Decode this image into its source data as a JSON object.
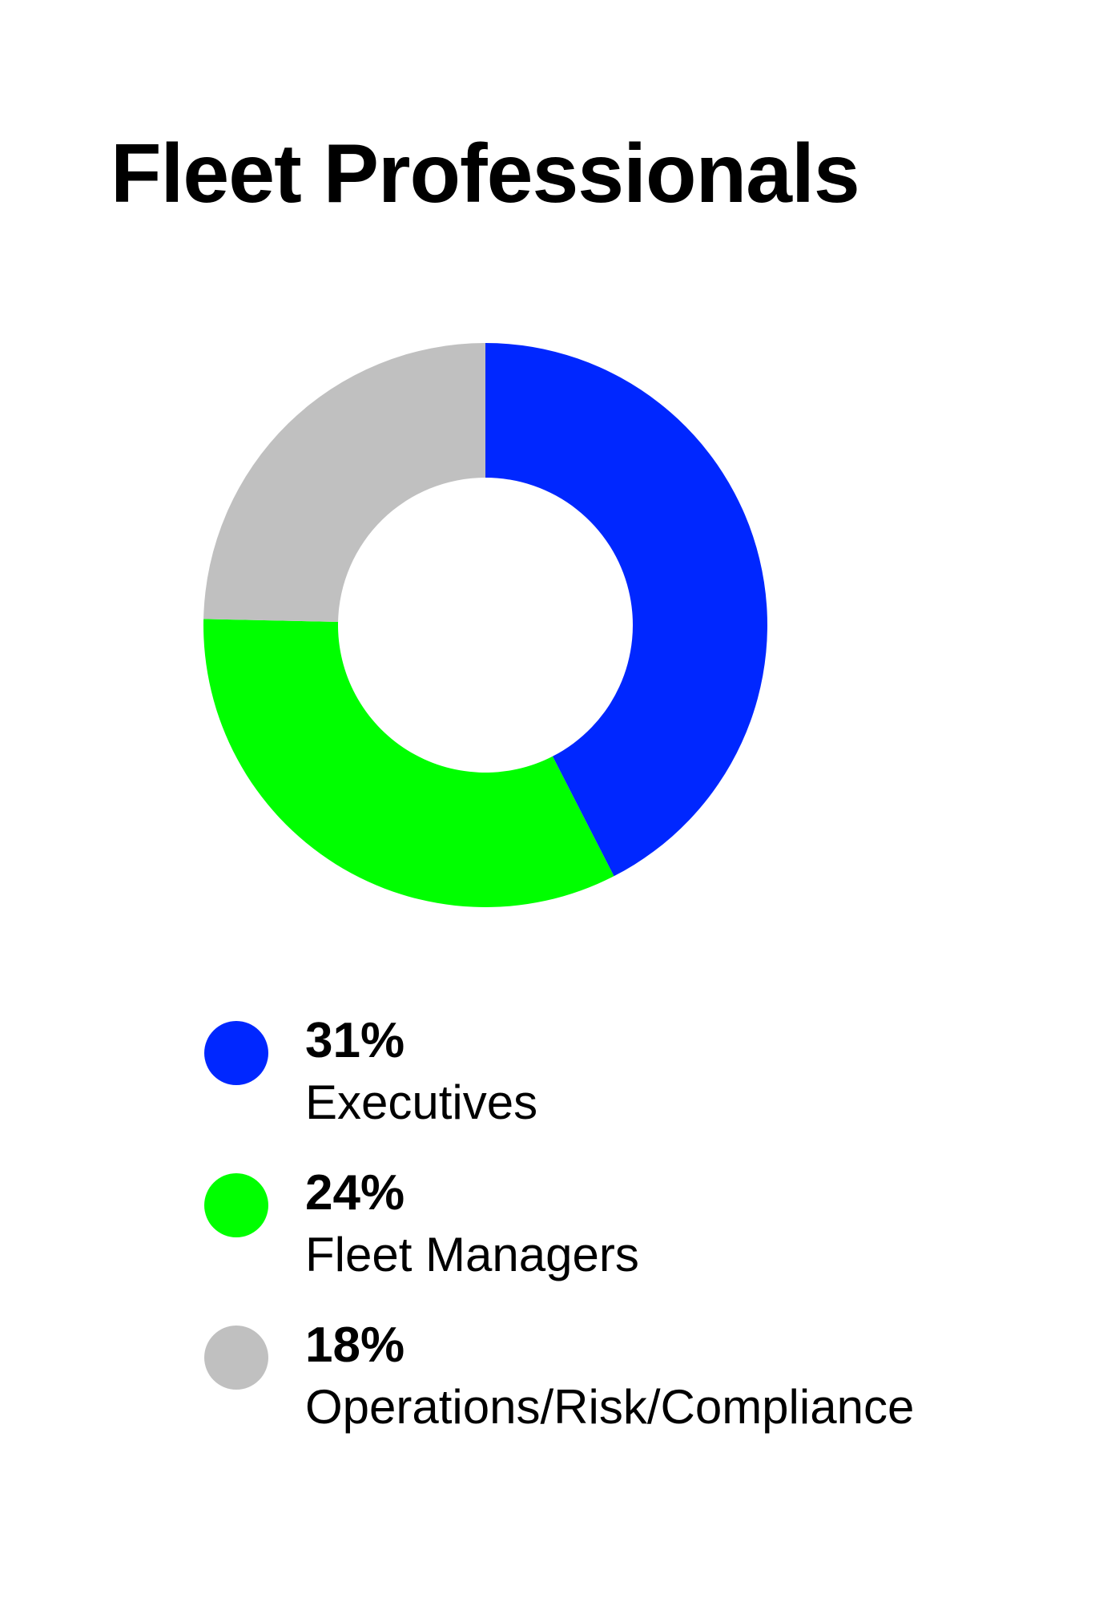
{
  "chart_data": {
    "type": "pie",
    "title": "Fleet Professionals",
    "categories": [
      "Executives",
      "Fleet Managers",
      "Operations/Risk/Compliance"
    ],
    "values": [
      31,
      24,
      18
    ],
    "labels": [
      "31%",
      "24%",
      "18%"
    ],
    "colors": [
      "#0027ff",
      "#00ff00",
      "#c0c0c0"
    ],
    "legend_position": "bottom"
  }
}
